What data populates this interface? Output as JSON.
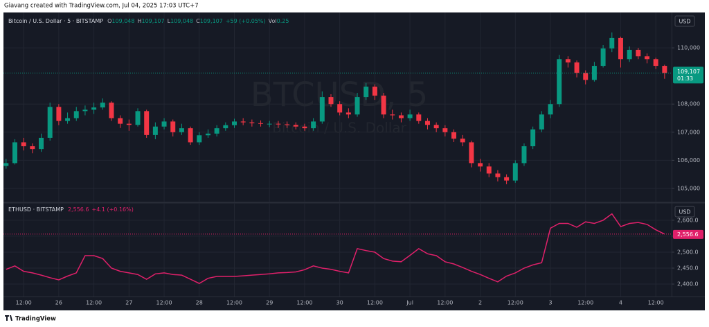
{
  "header": {
    "credit": "Giavang created with TradingView.com, Jul 04, 2025 17:03 UTC+7"
  },
  "footer": {
    "brand": "TradingView"
  },
  "chart_data": [
    {
      "type": "candlestick",
      "title": "Bitcoin / U.S. Dollar · 5 · BITSTAMP",
      "ohlc_legend": [
        {
          "label": "O",
          "value": "109,048"
        },
        {
          "label": "H",
          "value": "109,107"
        },
        {
          "label": "L",
          "value": "109,048"
        },
        {
          "label": "C",
          "value": "109,107"
        }
      ],
      "change": "+59 (+0.05%)",
      "volume": {
        "label": "Vol",
        "value": "0.25"
      },
      "watermark": {
        "symbol": "BTCUSD, 5",
        "description": "Bitcoin / U.S. Dollar"
      },
      "currency": "USD",
      "up_color": "#089981",
      "down_color": "#f23645",
      "grid": true,
      "xlim": [
        -0.3,
        75.8
      ],
      "ylim": [
        104506,
        111259
      ],
      "yticks": [
        {
          "value": 105000,
          "label": "105,000"
        },
        {
          "value": 106000,
          "label": "106,000"
        },
        {
          "value": 107000,
          "label": "107,000"
        },
        {
          "value": 108000,
          "label": "108,000"
        },
        {
          "value": 110000,
          "label": "110,000"
        }
      ],
      "last_price": {
        "value": 109107,
        "label": "109,107"
      },
      "countdown": "01:33",
      "candles": [
        [
          105800,
          106050,
          105700,
          105900
        ],
        [
          105900,
          106750,
          105850,
          106640
        ],
        [
          106640,
          106800,
          106350,
          106500
        ],
        [
          106500,
          106600,
          106250,
          106400
        ],
        [
          106400,
          106950,
          106300,
          106800
        ],
        [
          106800,
          108050,
          106700,
          107900
        ],
        [
          107900,
          108000,
          107250,
          107400
        ],
        [
          107400,
          107700,
          107300,
          107500
        ],
        [
          107500,
          107900,
          107400,
          107750
        ],
        [
          107750,
          107950,
          107600,
          107800
        ],
        [
          107800,
          108050,
          107650,
          107880
        ],
        [
          107880,
          108200,
          107800,
          108050
        ],
        [
          108050,
          108100,
          107400,
          107500
        ],
        [
          107500,
          107600,
          107150,
          107300
        ],
        [
          107300,
          107450,
          107050,
          107260
        ],
        [
          107260,
          107850,
          107200,
          107750
        ],
        [
          107750,
          107800,
          106800,
          106900
        ],
        [
          106900,
          107350,
          106750,
          107200
        ],
        [
          107200,
          107500,
          107100,
          107380
        ],
        [
          107380,
          107450,
          106850,
          107000
        ],
        [
          107000,
          107300,
          106900,
          107140
        ],
        [
          107140,
          107200,
          106550,
          106640
        ],
        [
          106640,
          107000,
          106550,
          106890
        ],
        [
          106890,
          107100,
          106800,
          106950
        ],
        [
          106950,
          107250,
          106850,
          107140
        ],
        [
          107140,
          107350,
          107050,
          107250
        ],
        [
          107250,
          107480,
          107150,
          107380
        ],
        [
          107380,
          107500,
          107250,
          107350
        ],
        [
          107350,
          107450,
          107200,
          107320
        ],
        [
          107320,
          107420,
          107200,
          107300
        ],
        [
          107300,
          107400,
          107180,
          107300
        ],
        [
          107300,
          107400,
          107150,
          107280
        ],
        [
          107280,
          107380,
          107150,
          107260
        ],
        [
          107260,
          107350,
          107100,
          107200
        ],
        [
          107200,
          107300,
          107050,
          107140
        ],
        [
          107140,
          107500,
          107050,
          107380
        ],
        [
          107380,
          108450,
          107300,
          108250
        ],
        [
          108250,
          108350,
          107900,
          108000
        ],
        [
          108000,
          108100,
          107600,
          107700
        ],
        [
          107700,
          107850,
          107500,
          107630
        ],
        [
          107630,
          108400,
          107550,
          108250
        ],
        [
          108250,
          108750,
          108150,
          108620
        ],
        [
          108620,
          108700,
          108150,
          108300
        ],
        [
          108300,
          108400,
          107500,
          107630
        ],
        [
          107630,
          107800,
          107450,
          107600
        ],
        [
          107600,
          107700,
          107350,
          107500
        ],
        [
          107500,
          107800,
          107400,
          107630
        ],
        [
          107630,
          107700,
          107300,
          107400
        ],
        [
          107400,
          107500,
          107100,
          107260
        ],
        [
          107260,
          107350,
          107000,
          107140
        ],
        [
          107140,
          107250,
          106850,
          107000
        ],
        [
          107000,
          107100,
          106650,
          106770
        ],
        [
          106770,
          106900,
          106500,
          106640
        ],
        [
          106640,
          106700,
          105750,
          105900
        ],
        [
          105900,
          106050,
          105600,
          105780
        ],
        [
          105780,
          105900,
          105400,
          105530
        ],
        [
          105530,
          105650,
          105250,
          105400
        ],
        [
          105400,
          105500,
          105150,
          105280
        ],
        [
          105280,
          106000,
          105200,
          105900
        ],
        [
          105900,
          106600,
          105800,
          106500
        ],
        [
          106500,
          107200,
          106400,
          107100
        ],
        [
          107100,
          107750,
          107000,
          107630
        ],
        [
          107630,
          108150,
          107500,
          108000
        ],
        [
          108000,
          109750,
          107900,
          109600
        ],
        [
          109600,
          109700,
          109300,
          109480
        ],
        [
          109480,
          109550,
          108950,
          109110
        ],
        [
          109110,
          109200,
          108700,
          108860
        ],
        [
          108860,
          109500,
          108800,
          109360
        ],
        [
          109360,
          110100,
          109300,
          109980
        ],
        [
          109980,
          110550,
          109850,
          110350
        ],
        [
          110350,
          110400,
          109300,
          109600
        ],
        [
          109600,
          110050,
          109500,
          109930
        ],
        [
          109930,
          110000,
          109600,
          109700
        ],
        [
          109700,
          109800,
          109450,
          109600
        ],
        [
          109600,
          109650,
          109250,
          109360
        ],
        [
          109360,
          109400,
          108900,
          109107
        ]
      ]
    },
    {
      "type": "line",
      "title": "ETHUSD · BITSTAMP",
      "change": "+4.1 (+0.16%)",
      "currency": "USD",
      "color": "#e0206a",
      "grid": true,
      "xlim": [
        -0.3,
        75.8
      ],
      "ylim": [
        2361,
        2654
      ],
      "yticks": [
        {
          "value": 2400,
          "label": "2,400.0"
        },
        {
          "value": 2450,
          "label": "2,450.0"
        },
        {
          "value": 2500,
          "label": "2,500.0"
        },
        {
          "value": 2550,
          "label": "2,550.0"
        },
        {
          "value": 2600,
          "label": "2,600.0"
        }
      ],
      "last_price": {
        "value": 2556.6,
        "label": "2,556.6"
      },
      "xticks": [
        {
          "value": 2,
          "label": "12:00"
        },
        {
          "value": 6,
          "label": "26"
        },
        {
          "value": 10,
          "label": "12:00"
        },
        {
          "value": 14,
          "label": "27"
        },
        {
          "value": 18,
          "label": "12:00"
        },
        {
          "value": 22,
          "label": "28"
        },
        {
          "value": 26,
          "label": "12:00"
        },
        {
          "value": 30,
          "label": "29"
        },
        {
          "value": 34,
          "label": "12:00"
        },
        {
          "value": 38,
          "label": "30"
        },
        {
          "value": 42,
          "label": "12:00"
        },
        {
          "value": 46,
          "label": "Jul"
        },
        {
          "value": 50,
          "label": "12:00"
        },
        {
          "value": 54,
          "label": "2"
        },
        {
          "value": 58,
          "label": "12:00"
        },
        {
          "value": 62,
          "label": "3"
        },
        {
          "value": 66,
          "label": "12:00"
        },
        {
          "value": 70,
          "label": "4"
        },
        {
          "value": 74,
          "label": "12:00"
        }
      ],
      "values": [
        2446,
        2457,
        2440,
        2435,
        2428,
        2420,
        2413,
        2425,
        2435,
        2489,
        2489,
        2480,
        2450,
        2440,
        2435,
        2430,
        2415,
        2432,
        2435,
        2430,
        2428,
        2415,
        2402,
        2418,
        2424,
        2424,
        2424,
        2426,
        2428,
        2430,
        2432,
        2435,
        2436,
        2438,
        2445,
        2457,
        2450,
        2446,
        2440,
        2435,
        2511,
        2505,
        2500,
        2480,
        2472,
        2470,
        2490,
        2511,
        2495,
        2489,
        2470,
        2463,
        2452,
        2440,
        2430,
        2418,
        2407,
        2425,
        2435,
        2450,
        2460,
        2467,
        2575,
        2590,
        2590,
        2578,
        2595,
        2590,
        2600,
        2620,
        2580,
        2590,
        2593,
        2587,
        2570,
        2556.6
      ]
    }
  ]
}
